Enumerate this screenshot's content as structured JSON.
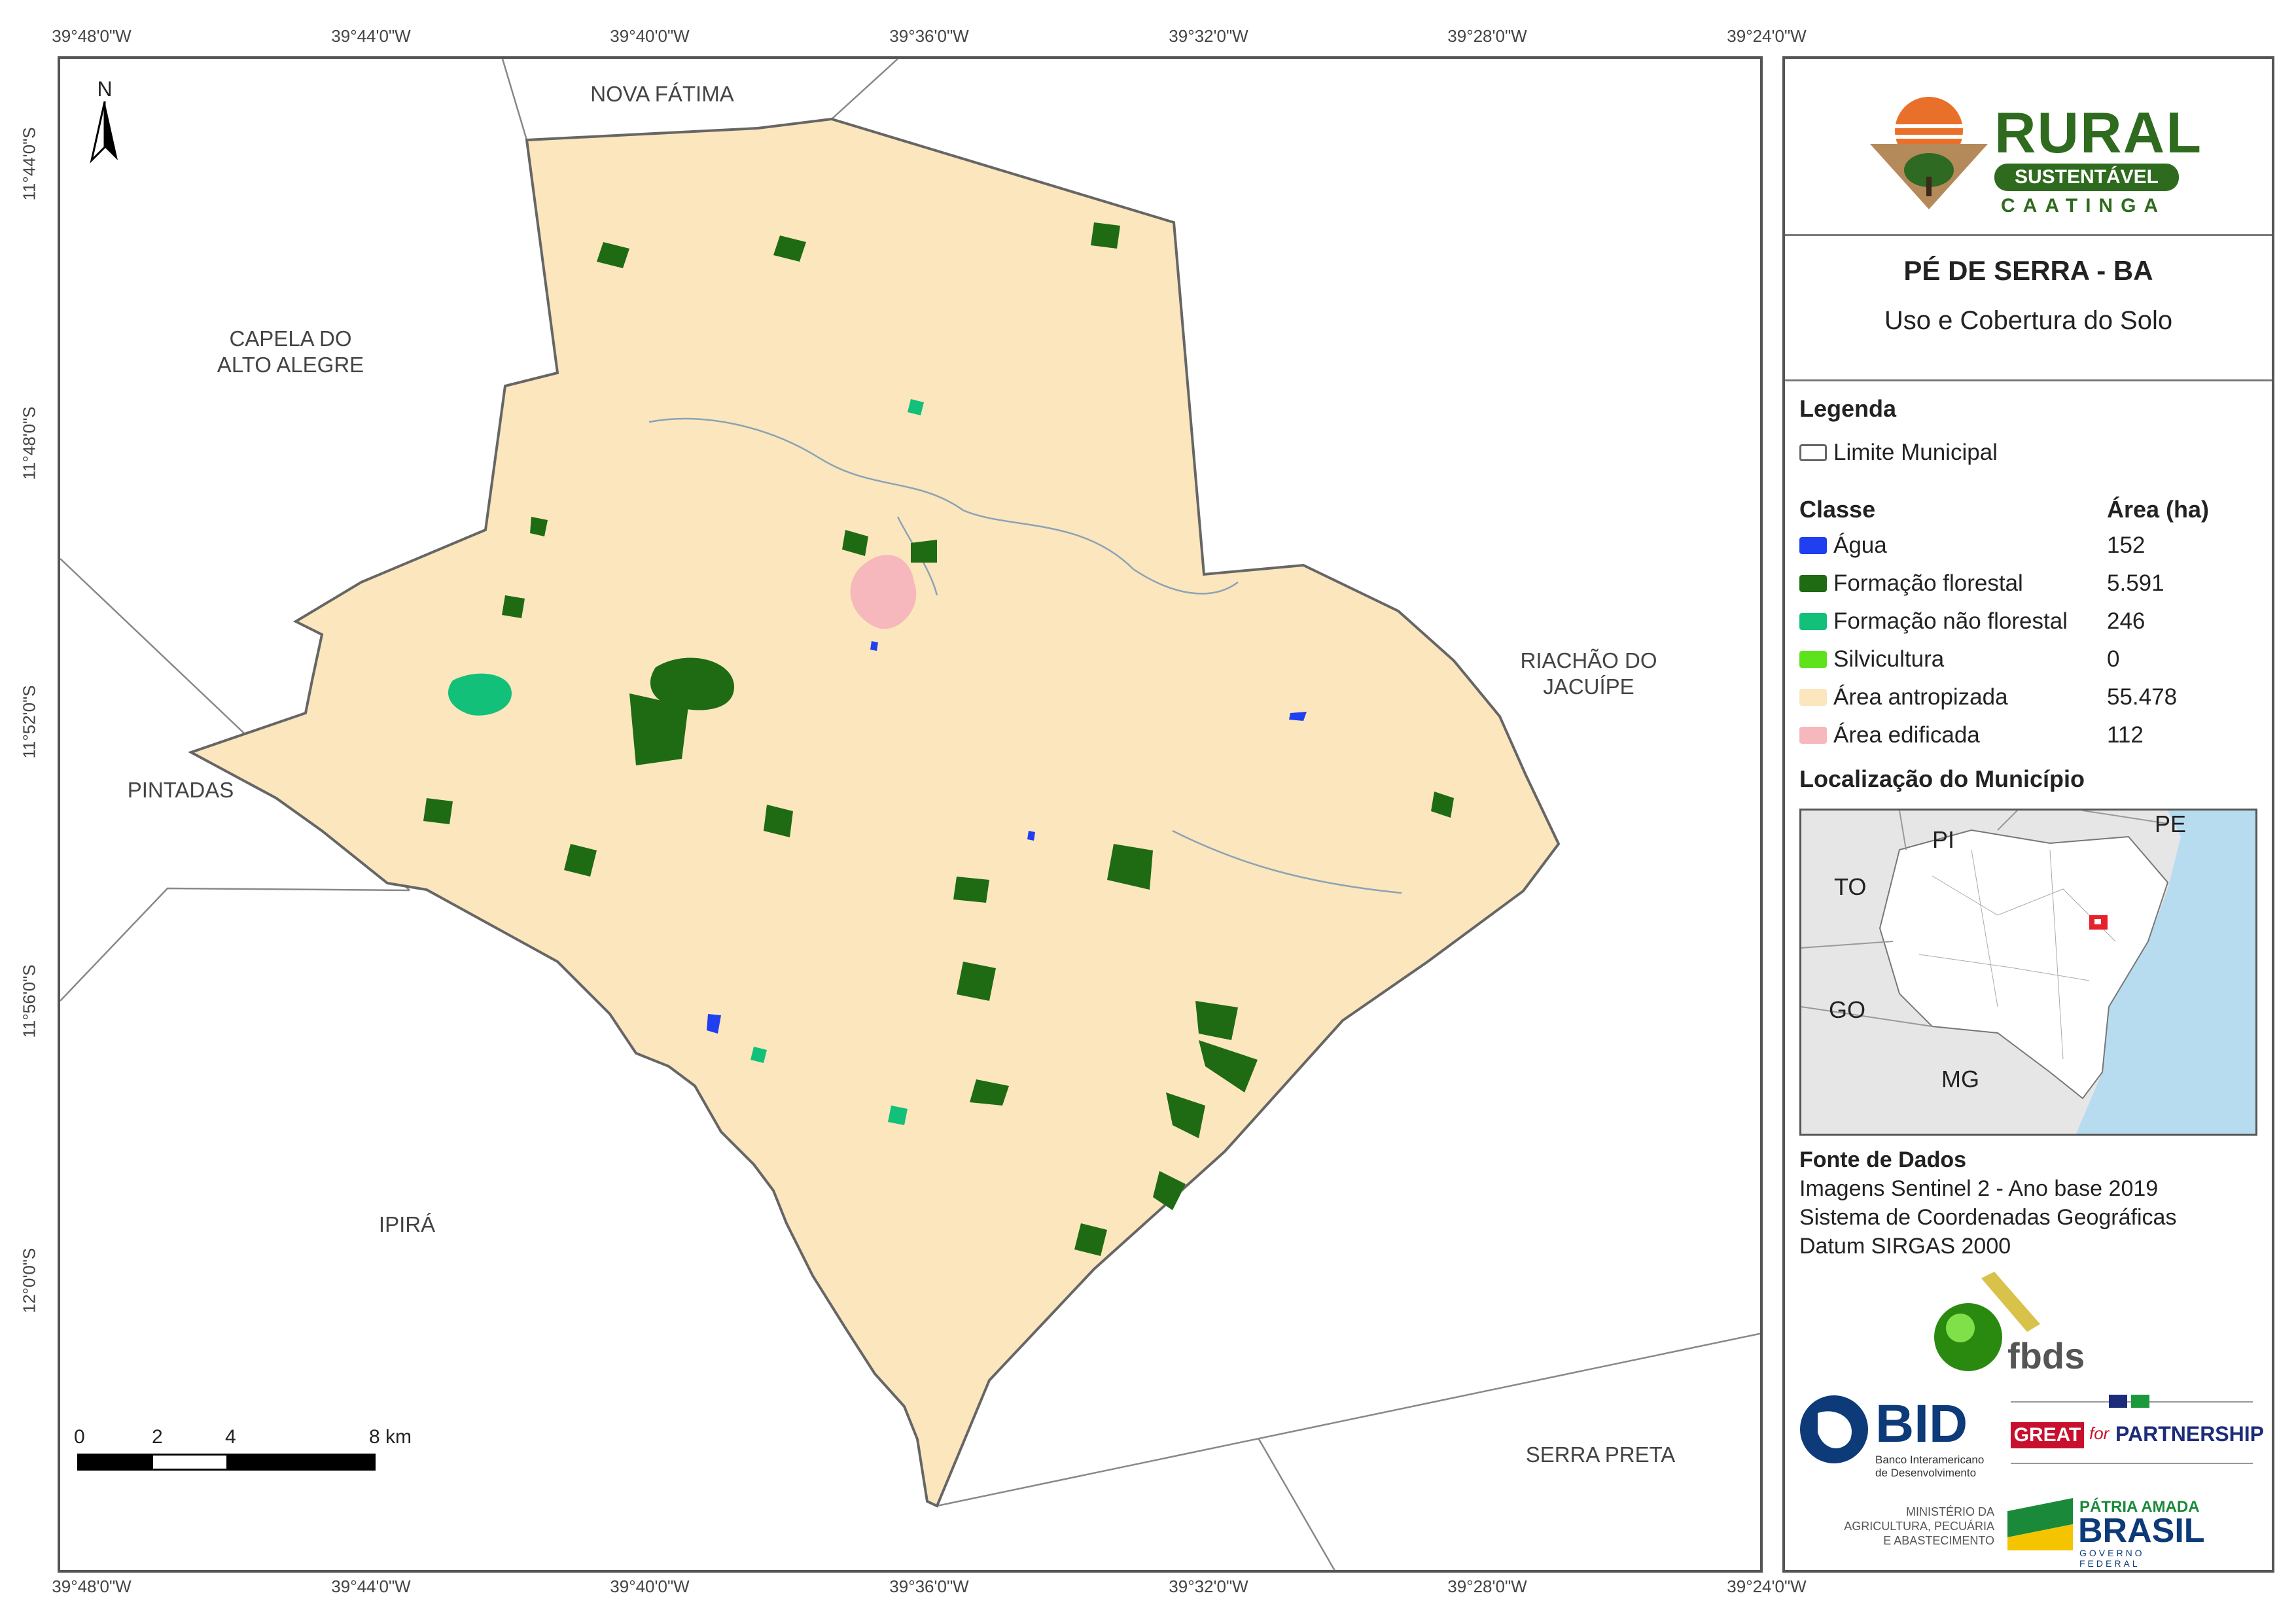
{
  "graticule": {
    "top": [
      "39°48'0\"W",
      "39°44'0\"W",
      "39°40'0\"W",
      "39°36'0\"W",
      "39°32'0\"W",
      "39°28'0\"W",
      "39°24'0\"W"
    ],
    "bottom": [
      "39°48'0\"W",
      "39°44'0\"W",
      "39°40'0\"W",
      "39°36'0\"W",
      "39°32'0\"W",
      "39°28'0\"W",
      "39°24'0\"W"
    ],
    "left": [
      "11°44'0\"S",
      "11°48'0\"S",
      "11°52'0\"S",
      "11°56'0\"S",
      "12°0'0\"S"
    ]
  },
  "places": {
    "nova_fatima": "NOVA FÁTIMA",
    "capela_line1": "CAPELA DO",
    "capela_line2": "ALTO ALEGRE",
    "riachao_line1": "RIACHÃO DO",
    "riachao_line2": "JACUÍPE",
    "pintadas": "PINTADAS",
    "ipira": "IPIRÁ",
    "serra_preta": "SERRA PRETA"
  },
  "north_arrow": "N",
  "scale_bar": {
    "labels": [
      "0",
      "2",
      "4",
      "8 km"
    ]
  },
  "logo_rural": {
    "title": "RURAL",
    "banner": "SUSTENTÁVEL",
    "subtitle": "CAATINGA"
  },
  "map_title": "PÉ DE SERRA - BA",
  "map_subtitle": "Uso e Cobertura do Solo",
  "legend": {
    "heading": "Legenda",
    "boundary_label": "Limite Municipal",
    "class_header": "Classe",
    "area_header": "Área (ha)",
    "classes": [
      {
        "label": "Água",
        "area": "152",
        "color": "#1f3ff0"
      },
      {
        "label": "Formação florestal",
        "area": "5.591",
        "color": "#1e6b14"
      },
      {
        "label": "Formação não florestal",
        "area": "246",
        "color": "#12c07a"
      },
      {
        "label": "Silvicultura",
        "area": "0",
        "color": "#5ee21c"
      },
      {
        "label": "Área antropizada",
        "area": "55.478",
        "color": "#fbe6bd"
      },
      {
        "label": "Área edificada",
        "area": "112",
        "color": "#f6b8bc"
      }
    ]
  },
  "location": {
    "heading": "Localização do Município",
    "states": [
      "PI",
      "PE",
      "TO",
      "GO",
      "MG"
    ]
  },
  "sources": {
    "heading": "Fonte de Dados",
    "lines": [
      "Imagens Sentinel 2 - Ano base 2019",
      "Sistema de Coordenadas Geográficas",
      "Datum SIRGAS 2000"
    ]
  },
  "logos": {
    "fbds": "fbds",
    "bid": "BID",
    "bid_line1": "Banco Interamericano",
    "bid_line2": "de Desenvolvimento",
    "great": "GREAT",
    "for": "for",
    "partnership": "PARTNERSHIP",
    "ministry_line1": "MINISTÉRIO DA",
    "ministry_line2": "AGRICULTURA, PECUÁRIA",
    "ministry_line3": "E ABASTECIMENTO",
    "patria": "PÁTRIA AMADA",
    "brasil": "BRASIL",
    "governo": "GOVERNO FEDERAL"
  },
  "colors": {
    "water": "#1f3ff0",
    "forest": "#1e6b14",
    "nonforest": "#12c07a",
    "anthropic": "#fbe6bd",
    "urban": "#f6b8bc",
    "ocean": "#b7dcf0"
  }
}
